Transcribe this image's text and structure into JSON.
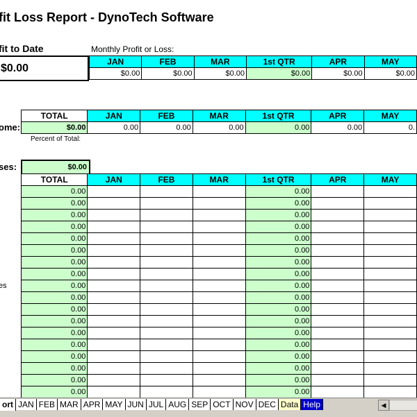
{
  "title": "fit Loss Report - DynoTech Software",
  "profit_to_date": {
    "label": "fit to Date",
    "value": "$0.00"
  },
  "monthly_label": "Monthly Profit or Loss:",
  "columns": [
    "JAN",
    "FEB",
    "MAR",
    "1st QTR",
    "APR",
    "MAY"
  ],
  "monthly_values": [
    "$0.00",
    "$0.00",
    "$0.00",
    "$0.00",
    "$0.00",
    "$0.00"
  ],
  "income": {
    "label": "ome:",
    "total_header": "TOTAL",
    "total": "$0.00",
    "values": [
      "0.00",
      "0.00",
      "0.00",
      "0.00",
      "0.00",
      "0."
    ],
    "percent_label": "Percent of Total:"
  },
  "expenses": {
    "label": "ses:",
    "total": "$0.00",
    "total_header": "TOTAL",
    "side_label": "es",
    "row_total": "0.00",
    "row_qtr": "0.00",
    "row_count": 18
  },
  "tabs": [
    "ort",
    "JAN",
    "FEB",
    "MAR",
    "APR",
    "MAY",
    "JUN",
    "JUL",
    "AUG",
    "SEP",
    "OCT",
    "NOV",
    "DEC",
    "Data",
    "Help"
  ],
  "active_tab": "ort",
  "colors": {
    "header": "#00ffff",
    "total": "#ccffcc",
    "help_tab": "#0000cc",
    "data_tab": "#ffffcc"
  }
}
